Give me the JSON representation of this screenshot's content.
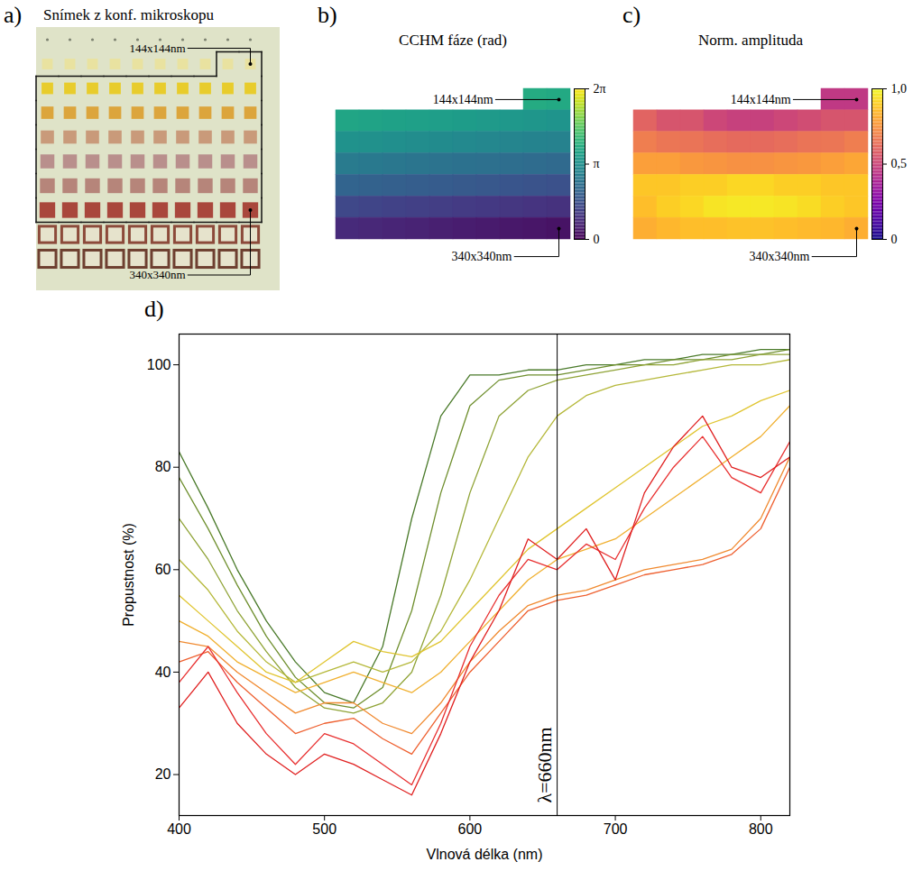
{
  "image": {
    "panel": "a)",
    "title": "Snímek z konf. mikroskopu",
    "annotations": [
      "144x144nm",
      "340x340nm"
    ],
    "rows": [
      {
        "color": "#7d8270",
        "marker": "dot"
      },
      {
        "color": "#e9e2a0",
        "marker": "square",
        "outlined": true
      },
      {
        "color": "#e8cc2c",
        "marker": "square",
        "outlined": true
      },
      {
        "color": "#dca53c",
        "marker": "square",
        "outlined": true
      },
      {
        "color": "#c99a7a",
        "marker": "square",
        "outlined": true
      },
      {
        "color": "#b98f8c",
        "marker": "square",
        "outlined": true
      },
      {
        "color": "#b6857a",
        "marker": "square",
        "outlined": true
      },
      {
        "color": "#a9473c",
        "marker": "square",
        "outlined": true
      },
      {
        "color": "#8c4a3a",
        "marker": "hollow"
      },
      {
        "color": "#6e3f30",
        "marker": "hollow"
      }
    ]
  },
  "chart_data": [
    {
      "type": "heatmap",
      "panel": "b)",
      "title": "CCHM fáze (rad)",
      "tick_labels": false,
      "annotations": [
        "144x144nm",
        "340x340nm"
      ],
      "cells": [
        [
          null,
          null,
          null,
          null,
          null,
          null,
          null,
          null,
          3.85,
          3.8
        ],
        [
          3.7,
          3.65,
          3.6,
          3.55,
          3.5,
          3.45,
          3.4,
          3.35,
          3.3,
          3.25
        ],
        [
          3.2,
          3.15,
          3.1,
          3.05,
          3.0,
          2.95,
          2.9,
          2.85,
          2.8,
          2.75
        ],
        [
          2.6,
          2.55,
          2.5,
          2.45,
          2.4,
          2.35,
          2.3,
          2.25,
          2.2,
          2.15
        ],
        [
          2.0,
          1.95,
          1.9,
          1.85,
          1.8,
          1.75,
          1.7,
          1.65,
          1.6,
          1.55
        ],
        [
          1.35,
          1.3,
          1.25,
          1.2,
          1.15,
          1.1,
          1.05,
          1.0,
          0.95,
          0.9
        ],
        [
          0.75,
          0.7,
          0.65,
          0.6,
          0.55,
          0.5,
          0.45,
          0.4,
          0.35,
          0.3
        ]
      ],
      "colorbar": {
        "range": [
          0,
          6.2832
        ],
        "ticks": [
          0,
          {
            "value": 3.1416,
            "label": "π"
          },
          {
            "value": 6.2832,
            "label": "2π"
          }
        ]
      }
    },
    {
      "type": "heatmap",
      "panel": "c)",
      "title": "Norm. amplituda",
      "tick_labels": false,
      "annotations": [
        "144x144nm",
        "340x340nm"
      ],
      "cells": [
        [
          null,
          null,
          null,
          null,
          null,
          null,
          null,
          null,
          0.45,
          0.45
        ],
        [
          0.6,
          0.55,
          0.55,
          0.5,
          0.48,
          0.48,
          0.5,
          0.52,
          0.55,
          0.55
        ],
        [
          0.68,
          0.66,
          0.65,
          0.63,
          0.62,
          0.62,
          0.63,
          0.65,
          0.66,
          0.68
        ],
        [
          0.78,
          0.78,
          0.76,
          0.75,
          0.74,
          0.74,
          0.75,
          0.76,
          0.78,
          0.8
        ],
        [
          0.88,
          0.88,
          0.9,
          0.9,
          0.92,
          0.92,
          0.9,
          0.9,
          0.88,
          0.88
        ],
        [
          0.86,
          0.9,
          0.92,
          0.95,
          0.96,
          0.96,
          0.95,
          0.93,
          0.9,
          0.88
        ],
        [
          0.82,
          0.84,
          0.86,
          0.86,
          0.87,
          0.87,
          0.86,
          0.85,
          0.84,
          0.82
        ]
      ],
      "colorbar": {
        "range": [
          0,
          1
        ],
        "ticks": [
          0,
          {
            "value": 0.5,
            "label": "0,5"
          },
          {
            "value": 1,
            "label": "1,0"
          }
        ]
      }
    },
    {
      "type": "line",
      "panel": "d)",
      "xlabel": "Vlnová délka (nm)",
      "ylabel": "Propustnost (%)",
      "xlim": [
        400,
        820
      ],
      "xticks": [
        400,
        500,
        600,
        700,
        800
      ],
      "ylim": [
        12,
        106
      ],
      "yticks": [
        20,
        40,
        60,
        80,
        100
      ],
      "annotations": [
        {
          "x": 660,
          "label": "λ=660nm",
          "line_style": "dashed"
        }
      ],
      "x": [
        400,
        420,
        440,
        460,
        480,
        500,
        520,
        540,
        560,
        580,
        600,
        620,
        640,
        660,
        680,
        700,
        720,
        740,
        760,
        780,
        800,
        820
      ],
      "series": [
        {
          "color": "#4a7a2a",
          "values": [
            83,
            72,
            60,
            50,
            42,
            36,
            34,
            45,
            70,
            90,
            98,
            98,
            99,
            99,
            100,
            100,
            101,
            101,
            102,
            102,
            103,
            103
          ]
        },
        {
          "color": "#6f8f2e",
          "values": [
            78,
            68,
            57,
            47,
            39,
            34,
            33,
            37,
            52,
            75,
            92,
            97,
            98,
            98,
            99,
            100,
            100,
            101,
            101,
            102,
            102,
            103
          ]
        },
        {
          "color": "#8fa336",
          "values": [
            70,
            62,
            52,
            44,
            37,
            33,
            32,
            34,
            40,
            55,
            75,
            90,
            95,
            97,
            98,
            99,
            100,
            100,
            101,
            101,
            102,
            102
          ]
        },
        {
          "color": "#b5b83a",
          "values": [
            62,
            56,
            48,
            42,
            38,
            40,
            42,
            40,
            42,
            48,
            58,
            70,
            82,
            90,
            94,
            96,
            97,
            98,
            99,
            100,
            100,
            101
          ]
        },
        {
          "color": "#e0c530",
          "values": [
            55,
            50,
            45,
            40,
            38,
            42,
            46,
            44,
            43,
            46,
            52,
            58,
            64,
            68,
            72,
            76,
            80,
            84,
            88,
            90,
            93,
            95
          ]
        },
        {
          "color": "#f0b030",
          "values": [
            50,
            47,
            42,
            39,
            36,
            38,
            40,
            38,
            36,
            40,
            46,
            52,
            58,
            62,
            64,
            66,
            70,
            74,
            78,
            82,
            86,
            92
          ]
        },
        {
          "color": "#f08a30",
          "values": [
            46,
            45,
            40,
            36,
            32,
            34,
            34,
            30,
            28,
            34,
            42,
            48,
            53,
            55,
            56,
            58,
            60,
            61,
            62,
            64,
            70,
            82
          ]
        },
        {
          "color": "#ee6030",
          "values": [
            42,
            44,
            38,
            33,
            28,
            30,
            31,
            27,
            24,
            32,
            40,
            46,
            52,
            54,
            55,
            57,
            59,
            60,
            61,
            63,
            68,
            80
          ]
        },
        {
          "color": "#e83030",
          "values": [
            38,
            45,
            36,
            28,
            22,
            28,
            26,
            22,
            18,
            30,
            45,
            55,
            62,
            60,
            65,
            62,
            72,
            80,
            86,
            78,
            75,
            85
          ]
        },
        {
          "color": "#e02020",
          "values": [
            33,
            40,
            30,
            24,
            20,
            24,
            22,
            19,
            16,
            28,
            42,
            52,
            66,
            62,
            68,
            58,
            75,
            84,
            90,
            80,
            78,
            82
          ]
        }
      ]
    }
  ]
}
